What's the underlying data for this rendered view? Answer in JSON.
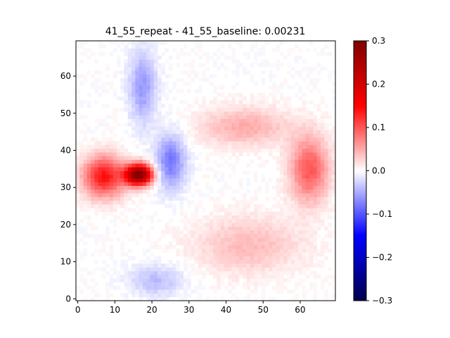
{
  "chart_data": {
    "type": "heatmap",
    "title": "41_55_repeat - 41_55_baseline: 0.00231",
    "grid_size": [
      70,
      70
    ],
    "xlim": [
      0,
      69
    ],
    "ylim": [
      0,
      69
    ],
    "x_ticks": [
      0,
      10,
      20,
      30,
      40,
      50,
      60
    ],
    "y_ticks": [
      0,
      10,
      20,
      30,
      40,
      50,
      60
    ],
    "colormap": "seismic",
    "colorbar": {
      "vmin": -0.3,
      "vmax": 0.3,
      "ticks": [
        -0.3,
        -0.2,
        -0.1,
        0.0,
        0.1,
        0.2,
        0.3
      ],
      "tick_labels": [
        "−0.3",
        "−0.2",
        "−0.1",
        "0.0",
        "0.1",
        "0.2",
        "0.3"
      ]
    },
    "features": [
      {
        "sign": "positive",
        "description": "strong red blob",
        "x": [
          12,
          21
        ],
        "y": [
          30,
          37
        ],
        "peak": 0.3
      },
      {
        "sign": "positive",
        "description": "red band left edge",
        "x": [
          0,
          14
        ],
        "y": [
          26,
          40
        ],
        "peak": 0.14
      },
      {
        "sign": "positive",
        "description": "pink band right edge",
        "x": [
          56,
          69
        ],
        "y": [
          24,
          46
        ],
        "peak": 0.1
      },
      {
        "sign": "positive",
        "description": "faint pink arc upper",
        "x": [
          30,
          60
        ],
        "y": [
          40,
          53
        ],
        "peak": 0.05
      },
      {
        "sign": "positive",
        "description": "faint pink arc lower",
        "x": [
          28,
          64
        ],
        "y": [
          5,
          24
        ],
        "peak": 0.04
      },
      {
        "sign": "negative",
        "description": "blue streak upper-left",
        "x": [
          13,
          22
        ],
        "y": [
          45,
          69
        ],
        "peak": -0.06
      },
      {
        "sign": "negative",
        "description": "blue streak center",
        "x": [
          20,
          30
        ],
        "y": [
          28,
          46
        ],
        "peak": -0.08
      },
      {
        "sign": "negative",
        "description": "faint blue bottom",
        "x": [
          12,
          30
        ],
        "y": [
          0,
          10
        ],
        "peak": -0.04
      }
    ]
  }
}
